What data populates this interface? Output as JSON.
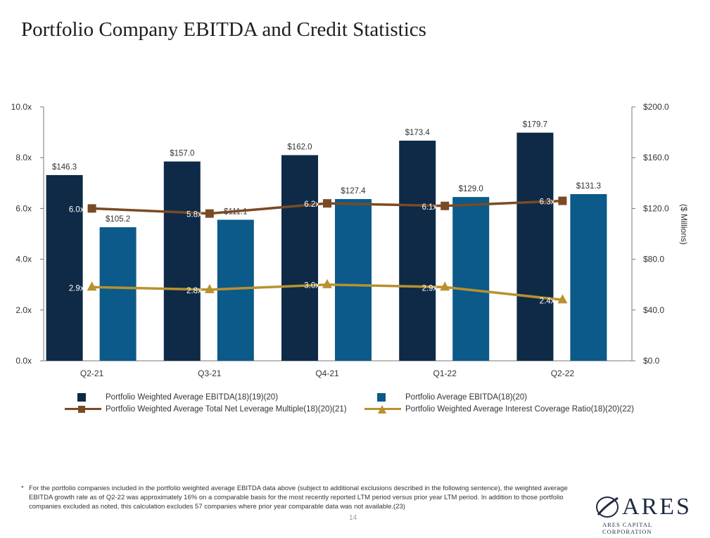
{
  "title": "Portfolio Company EBITDA and Credit Statistics",
  "colors": {
    "weighted_ebitda": "#0e2a47",
    "avg_ebitda": "#0b5a8a",
    "leverage": "#7a4a24",
    "interest_coverage": "#b8912f",
    "axis": "#777777",
    "grid_text": "#333333"
  },
  "chart_data": {
    "type": "bar",
    "categories": [
      "Q2-21",
      "Q3-21",
      "Q4-21",
      "Q1-22",
      "Q2-22"
    ],
    "series": [
      {
        "name": "Portfolio Weighted Average EBITDA(18)(19)(20)",
        "kind": "bar",
        "axis": "right",
        "values": [
          146.3,
          157.0,
          162.0,
          173.4,
          179.7
        ],
        "labels": [
          "$146.3",
          "$157.0",
          "$162.0",
          "$173.4",
          "$179.7"
        ]
      },
      {
        "name": "Portfolio Average EBITDA(18)(20)",
        "kind": "bar",
        "axis": "right",
        "values": [
          105.2,
          111.1,
          127.4,
          129.0,
          131.3
        ],
        "labels": [
          "$105.2",
          "$111.1",
          "$127.4",
          "$129.0",
          "$131.3"
        ]
      },
      {
        "name": "Portfolio Weighted Average Total Net Leverage Multiple(18)(20)(21)",
        "kind": "line",
        "axis": "left",
        "values": [
          6.0,
          5.8,
          6.2,
          6.1,
          6.3
        ],
        "labels": [
          "6.0x",
          "5.8x",
          "6.2x",
          "6.1x",
          "6.3x"
        ]
      },
      {
        "name": "Portfolio Weighted Average Interest Coverage Ratio(18)(20)(22)",
        "kind": "line",
        "axis": "left",
        "values": [
          2.9,
          2.8,
          3.0,
          2.9,
          2.4
        ],
        "labels": [
          "2.9x",
          "2.8x",
          "3.0x",
          "2.9x",
          "2.4x"
        ]
      }
    ],
    "y_left": {
      "range": [
        0,
        10
      ],
      "ticks": [
        "0.0x",
        "2.0x",
        "4.0x",
        "6.0x",
        "8.0x",
        "10.0x"
      ]
    },
    "y_right": {
      "range": [
        0,
        200
      ],
      "ticks": [
        "$0.0",
        "$40.0",
        "$80.0",
        "$120.0",
        "$160.0",
        "$200.0"
      ],
      "label": "($ Millions)"
    },
    "legend_position": "bottom",
    "grid": false
  },
  "legend": {
    "weighted_ebitda": "Portfolio Weighted Average EBITDA(18)(19)(20)",
    "avg_ebitda": "Portfolio Average EBITDA(18)(20)",
    "leverage": "Portfolio Weighted Average Total Net Leverage Multiple(18)(20)(21)",
    "interest_coverage": "Portfolio Weighted Average Interest Coverage Ratio(18)(20)(22)"
  },
  "footnote": {
    "marker": "*",
    "text": "For the portfolio companies included in the portfolio weighted average EBITDA data above (subject to additional exclusions described in the following sentence), the weighted average EBITDA growth rate as of Q2-22 was approximately 16% on a comparable basis for the most recently reported LTM period versus prior year LTM period. In addition to those portfolio companies excluded as noted, this calculation excludes 57 companies where prior year comparable data was not available.(23)"
  },
  "page_number": "14",
  "logo": {
    "name": "ARES",
    "subtitle": "ARES CAPITAL CORPORATION"
  }
}
